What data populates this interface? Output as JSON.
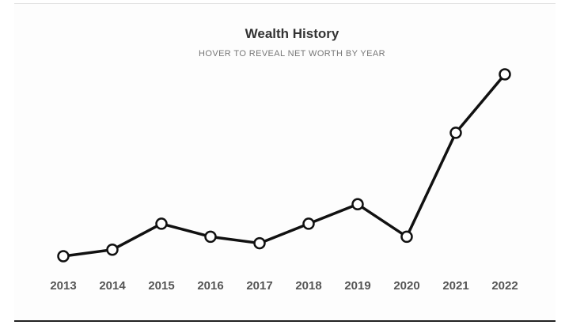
{
  "header": {
    "title": "Wealth History",
    "subtitle": "HOVER TO REVEAL NET WORTH BY YEAR"
  },
  "colors": {
    "line": "#111111",
    "point_fill": "#ffffff",
    "tick_text": "#555555"
  },
  "chart_data": {
    "type": "line",
    "title": "Wealth History",
    "subtitle": "HOVER TO REVEAL NET WORTH BY YEAR",
    "xlabel": "",
    "ylabel": "",
    "categories": [
      "2013",
      "2014",
      "2015",
      "2016",
      "2017",
      "2018",
      "2019",
      "2020",
      "2021",
      "2022"
    ],
    "series": [
      {
        "values": [
          0,
          2,
          10,
          6,
          4,
          10,
          16,
          6,
          38,
          56
        ]
      }
    ],
    "ylim": [
      0,
      56
    ],
    "grid": false,
    "legend": "none",
    "y_axis_visible": false
  }
}
